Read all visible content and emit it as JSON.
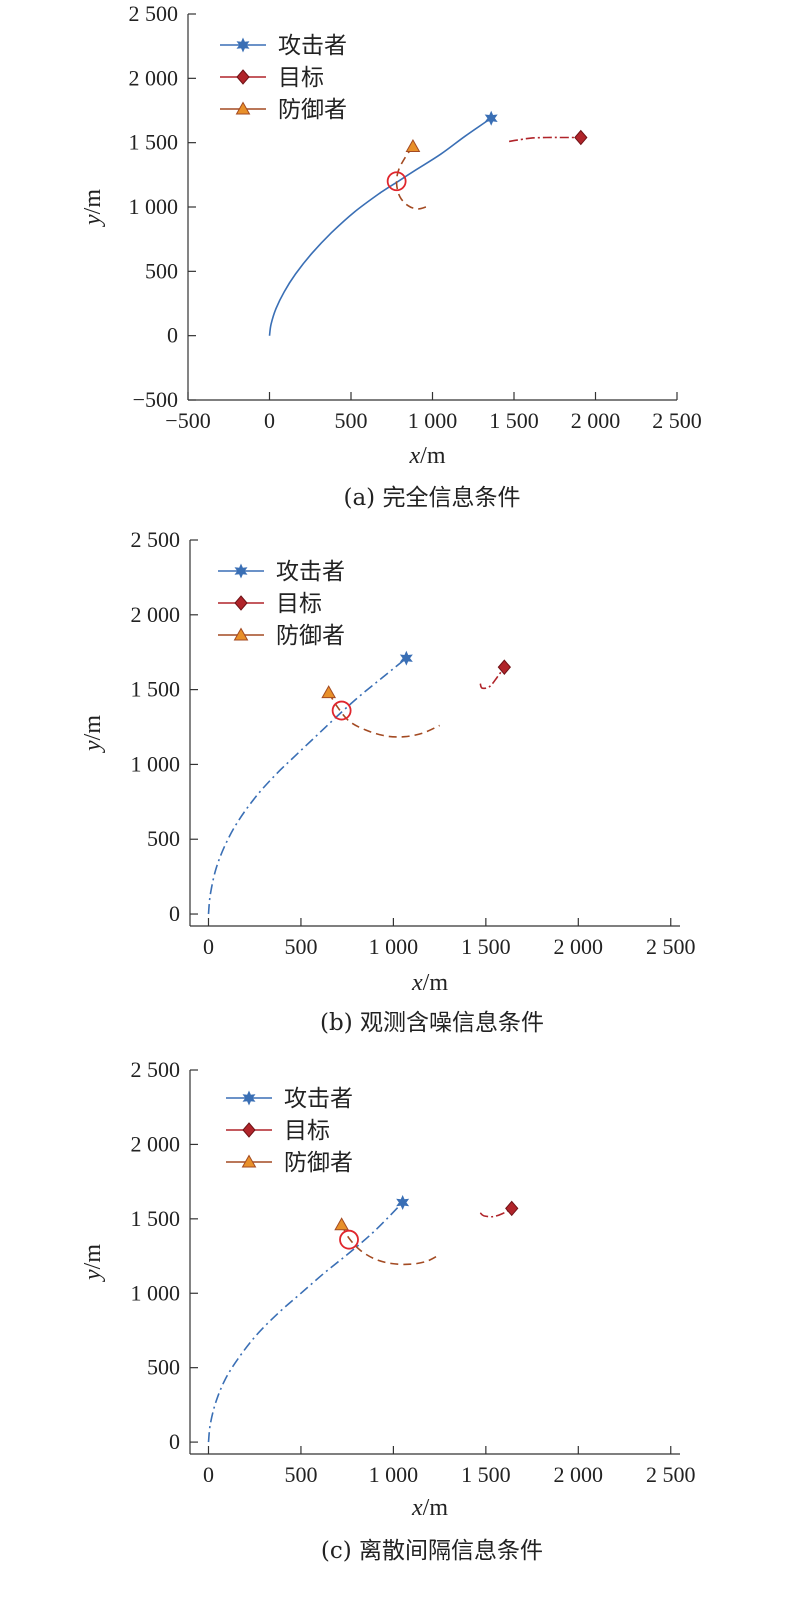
{
  "legend": {
    "items": [
      {
        "key": "attacker",
        "label": "攻击者",
        "color": "#3a6fb5",
        "marker": "star"
      },
      {
        "key": "target",
        "label": "目标",
        "color": "#b0242a",
        "marker": "diamond"
      },
      {
        "key": "defender",
        "label": "防御者",
        "color": "#e8902a",
        "stroke": "#a34a22",
        "marker": "triangle"
      }
    ]
  },
  "colors": {
    "attacker": "#3a6fb5",
    "target": "#b0242a",
    "defender_line": "#a34a22",
    "defender_fill": "#e8902a",
    "intercept": "#e0262d",
    "axis": "#333333"
  },
  "chart_data": [
    {
      "type": "line",
      "caption": "(a) 完全信息条件",
      "xlabel_var": "x",
      "xlabel_unit": "/m",
      "ylabel_var": "y",
      "ylabel_unit": "/m",
      "xlim": [
        -500,
        2500
      ],
      "ylim": [
        -500,
        2500
      ],
      "xticks": [
        -500,
        0,
        500,
        1000,
        1500,
        2000,
        2500
      ],
      "xtick_labels": [
        "−500",
        "0",
        "500",
        "1 000",
        "1 500",
        "2 000",
        "2 500"
      ],
      "yticks": [
        -500,
        0,
        500,
        1000,
        1500,
        2000,
        2500
      ],
      "ytick_labels": [
        "−500",
        "0",
        "500",
        "1 000",
        "1 500",
        "2 000",
        "2 500"
      ],
      "attacker_style": "solid",
      "series": [
        {
          "name": "攻击者",
          "x": [
            0,
            10,
            40,
            90,
            160,
            260,
            380,
            520,
            680,
            790,
            900,
            1050,
            1200,
            1360
          ],
          "y": [
            0,
            90,
            210,
            340,
            480,
            640,
            800,
            960,
            1110,
            1200,
            1290,
            1410,
            1550,
            1690
          ]
        },
        {
          "name": "目标",
          "x": [
            1470,
            1520,
            1600,
            1700,
            1800,
            1910
          ],
          "y": [
            1510,
            1520,
            1535,
            1540,
            1540,
            1540
          ]
        },
        {
          "name": "防御者",
          "x": [
            880,
            830,
            790,
            780,
            800,
            850,
            910,
            960
          ],
          "y": [
            1470,
            1380,
            1280,
            1180,
            1080,
            1010,
            985,
            1000
          ]
        }
      ],
      "intercept": {
        "x": 780,
        "y": 1200
      }
    },
    {
      "type": "line",
      "caption": "(b) 观测含噪信息条件",
      "xlabel_var": "x",
      "xlabel_unit": "/m",
      "ylabel_var": "y",
      "ylabel_unit": "/m",
      "xlim": [
        -100,
        2550
      ],
      "ylim": [
        -80,
        2500
      ],
      "xticks": [
        0,
        500,
        1000,
        1500,
        2000,
        2500
      ],
      "xtick_labels": [
        "0",
        "500",
        "1 000",
        "1 500",
        "2 000",
        "2 500"
      ],
      "yticks": [
        0,
        500,
        1000,
        1500,
        2000,
        2500
      ],
      "ytick_labels": [
        "0",
        "500",
        "1 000",
        "1 500",
        "2 000",
        "2 500"
      ],
      "attacker_style": "dashdot",
      "series": [
        {
          "name": "攻击者",
          "x": [
            0,
            10,
            40,
            90,
            160,
            260,
            370,
            480,
            600,
            720,
            830,
            950,
            1070
          ],
          "y": [
            0,
            130,
            300,
            460,
            620,
            790,
            940,
            1070,
            1210,
            1350,
            1470,
            1590,
            1710
          ]
        },
        {
          "name": "目标",
          "x": [
            1470,
            1480,
            1520,
            1560,
            1600
          ],
          "y": [
            1540,
            1510,
            1520,
            1580,
            1650
          ]
        },
        {
          "name": "防御者",
          "x": [
            650,
            700,
            760,
            850,
            960,
            1060,
            1160,
            1250
          ],
          "y": [
            1480,
            1380,
            1290,
            1230,
            1190,
            1185,
            1210,
            1260
          ]
        }
      ],
      "intercept": {
        "x": 720,
        "y": 1360
      }
    },
    {
      "type": "line",
      "caption": "(c) 离散间隔信息条件",
      "xlabel_var": "x",
      "xlabel_unit": "/m",
      "ylabel_var": "y",
      "ylabel_unit": "/m",
      "xlim": [
        -100,
        2550
      ],
      "ylim": [
        -80,
        2500
      ],
      "xticks": [
        0,
        500,
        1000,
        1500,
        2000,
        2500
      ],
      "xtick_labels": [
        "0",
        "500",
        "1 000",
        "1 500",
        "2 000",
        "2 500"
      ],
      "yticks": [
        0,
        500,
        1000,
        1500,
        2000,
        2500
      ],
      "ytick_labels": [
        "0",
        "500",
        "1 000",
        "1 500",
        "2 000",
        "2 500"
      ],
      "attacker_style": "dashdot",
      "series": [
        {
          "name": "攻击者",
          "x": [
            0,
            10,
            40,
            90,
            160,
            260,
            380,
            500,
            630,
            760,
            900,
            1050
          ],
          "y": [
            0,
            120,
            270,
            420,
            560,
            720,
            870,
            1000,
            1140,
            1270,
            1420,
            1610
          ]
        },
        {
          "name": "目标",
          "x": [
            1470,
            1490,
            1540,
            1590,
            1640
          ],
          "y": [
            1540,
            1520,
            1515,
            1535,
            1570
          ]
        },
        {
          "name": "防御者",
          "x": [
            720,
            760,
            820,
            900,
            990,
            1090,
            1180,
            1250
          ],
          "y": [
            1460,
            1370,
            1290,
            1230,
            1200,
            1195,
            1215,
            1260
          ]
        }
      ],
      "intercept": {
        "x": 760,
        "y": 1360
      }
    }
  ]
}
